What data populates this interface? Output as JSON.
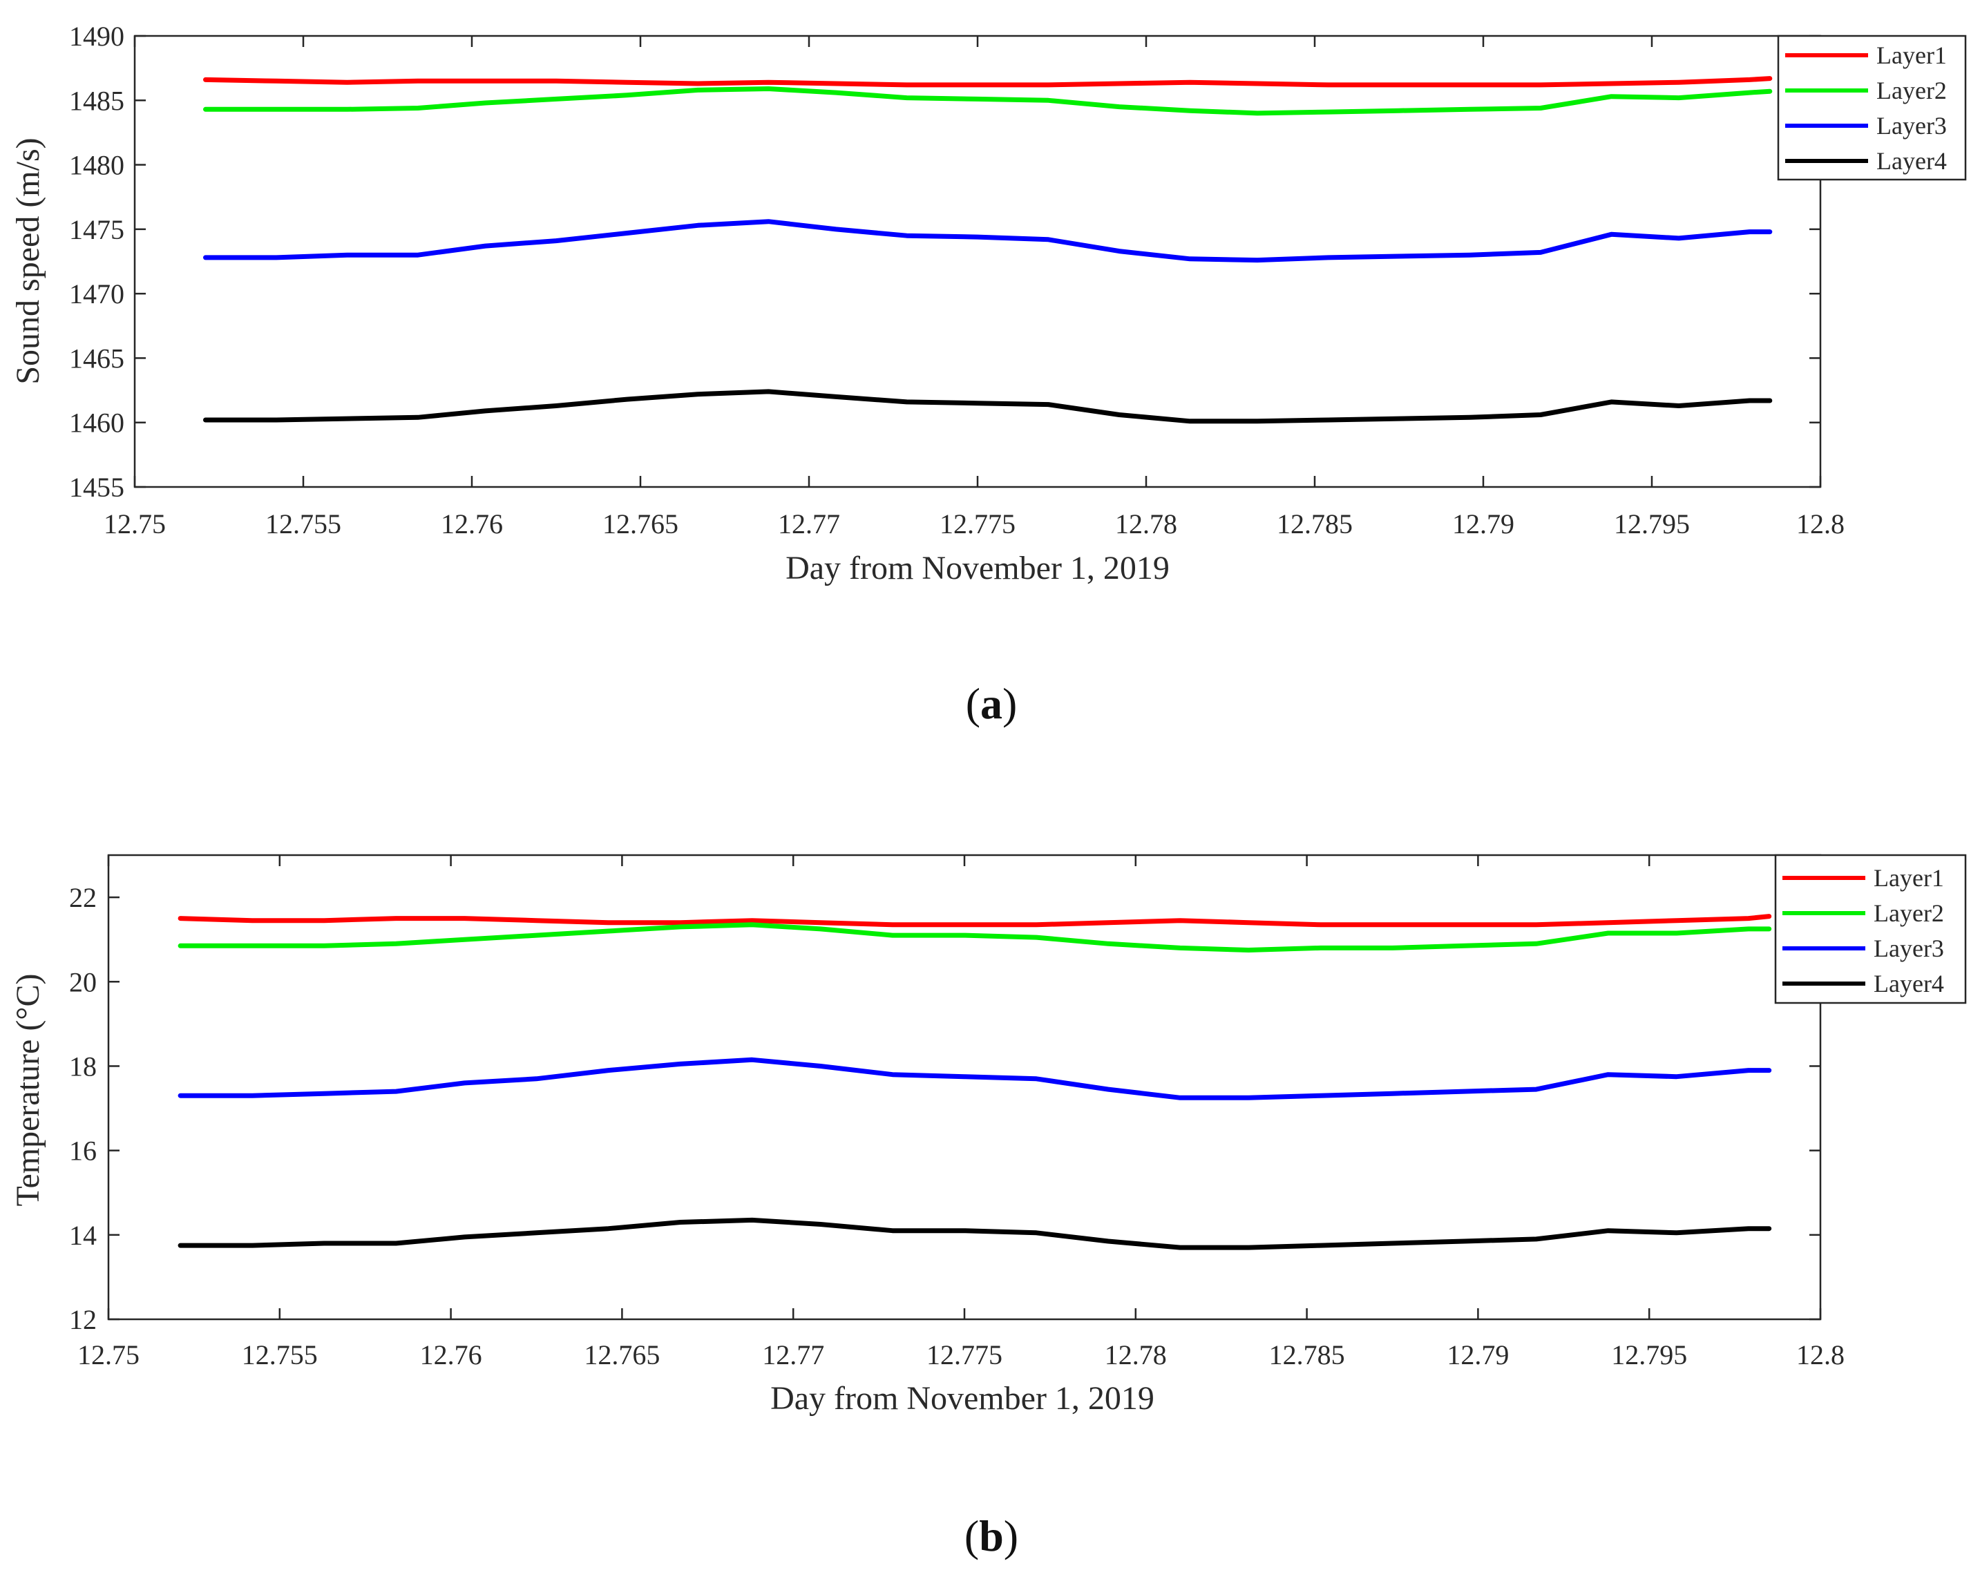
{
  "chart_data": [
    {
      "type": "line",
      "panel": "a",
      "caption_open": "(",
      "caption_letter": "a",
      "caption_close": ")",
      "xlabel": "Day from November 1, 2019",
      "ylabel": "Sound speed (m/s)",
      "xlim": [
        12.75,
        12.8
      ],
      "ylim": [
        1455,
        1490
      ],
      "xticks": [
        12.75,
        12.755,
        12.76,
        12.765,
        12.77,
        12.775,
        12.78,
        12.785,
        12.79,
        12.795,
        12.8
      ],
      "xtick_labels": [
        "12.75",
        "12.755",
        "12.76",
        "12.765",
        "12.77",
        "12.775",
        "12.78",
        "12.785",
        "12.79",
        "12.795",
        "12.8"
      ],
      "yticks": [
        1455,
        1460,
        1465,
        1470,
        1475,
        1480,
        1485,
        1490
      ],
      "ytick_labels": [
        "1455",
        "1460",
        "1465",
        "1470",
        "1475",
        "1480",
        "1485",
        "1490"
      ],
      "legend_position": "top-right",
      "series": [
        {
          "name": "Layer1",
          "color": "#ff0000",
          "x": [
            12.7521,
            12.7542,
            12.7563,
            12.7584,
            12.7604,
            12.7625,
            12.7646,
            12.7667,
            12.7688,
            12.7708,
            12.7729,
            12.775,
            12.7771,
            12.7792,
            12.7813,
            12.7833,
            12.7854,
            12.7875,
            12.7896,
            12.7917,
            12.7938,
            12.7958,
            12.7979,
            12.7985
          ],
          "y": [
            1486.6,
            1486.5,
            1486.4,
            1486.5,
            1486.5,
            1486.5,
            1486.4,
            1486.3,
            1486.4,
            1486.3,
            1486.2,
            1486.2,
            1486.2,
            1486.3,
            1486.4,
            1486.3,
            1486.2,
            1486.2,
            1486.2,
            1486.2,
            1486.3,
            1486.4,
            1486.6,
            1486.7
          ]
        },
        {
          "name": "Layer2",
          "color": "#00ee00",
          "x": [
            12.7521,
            12.7542,
            12.7563,
            12.7584,
            12.7604,
            12.7625,
            12.7646,
            12.7667,
            12.7688,
            12.7708,
            12.7729,
            12.775,
            12.7771,
            12.7792,
            12.7813,
            12.7833,
            12.7854,
            12.7875,
            12.7896,
            12.7917,
            12.7938,
            12.7958,
            12.7979,
            12.7985
          ],
          "y": [
            1484.3,
            1484.3,
            1484.3,
            1484.4,
            1484.8,
            1485.1,
            1485.4,
            1485.8,
            1485.9,
            1485.6,
            1485.2,
            1485.1,
            1485.0,
            1484.5,
            1484.2,
            1484.0,
            1484.1,
            1484.2,
            1484.3,
            1484.4,
            1485.3,
            1485.2,
            1485.6,
            1485.7
          ]
        },
        {
          "name": "Layer3",
          "color": "#0000ff",
          "x": [
            12.7521,
            12.7542,
            12.7563,
            12.7584,
            12.7604,
            12.7625,
            12.7646,
            12.7667,
            12.7688,
            12.7708,
            12.7729,
            12.775,
            12.7771,
            12.7792,
            12.7813,
            12.7833,
            12.7854,
            12.7875,
            12.7896,
            12.7917,
            12.7938,
            12.7958,
            12.7979,
            12.7985
          ],
          "y": [
            1472.8,
            1472.8,
            1473.0,
            1473.0,
            1473.7,
            1474.1,
            1474.7,
            1475.3,
            1475.6,
            1475.0,
            1474.5,
            1474.4,
            1474.2,
            1473.3,
            1472.7,
            1472.6,
            1472.8,
            1472.9,
            1473.0,
            1473.2,
            1474.6,
            1474.3,
            1474.8,
            1474.8
          ]
        },
        {
          "name": "Layer4",
          "color": "#000000",
          "x": [
            12.7521,
            12.7542,
            12.7563,
            12.7584,
            12.7604,
            12.7625,
            12.7646,
            12.7667,
            12.7688,
            12.7708,
            12.7729,
            12.775,
            12.7771,
            12.7792,
            12.7813,
            12.7833,
            12.7854,
            12.7875,
            12.7896,
            12.7917,
            12.7938,
            12.7958,
            12.7979,
            12.7985
          ],
          "y": [
            1460.2,
            1460.2,
            1460.3,
            1460.4,
            1460.9,
            1461.3,
            1461.8,
            1462.2,
            1462.4,
            1462.0,
            1461.6,
            1461.5,
            1461.4,
            1460.6,
            1460.1,
            1460.1,
            1460.2,
            1460.3,
            1460.4,
            1460.6,
            1461.6,
            1461.3,
            1461.7,
            1461.7
          ]
        }
      ]
    },
    {
      "type": "line",
      "panel": "b",
      "caption_open": "(",
      "caption_letter": "b",
      "caption_close": ")",
      "xlabel": "Day from November 1, 2019",
      "ylabel": "Temperature (°C)",
      "xlim": [
        12.75,
        12.8
      ],
      "ylim": [
        12,
        23
      ],
      "xticks": [
        12.75,
        12.755,
        12.76,
        12.765,
        12.77,
        12.775,
        12.78,
        12.785,
        12.79,
        12.795,
        12.8
      ],
      "xtick_labels": [
        "12.75",
        "12.755",
        "12.76",
        "12.765",
        "12.77",
        "12.775",
        "12.78",
        "12.785",
        "12.79",
        "12.795",
        "12.8"
      ],
      "yticks": [
        12,
        14,
        16,
        18,
        20,
        22
      ],
      "ytick_labels": [
        "12",
        "14",
        "16",
        "18",
        "20",
        "22"
      ],
      "legend_position": "top-right",
      "series": [
        {
          "name": "Layer1",
          "color": "#ff0000",
          "x": [
            12.7521,
            12.7542,
            12.7563,
            12.7584,
            12.7604,
            12.7625,
            12.7646,
            12.7667,
            12.7688,
            12.7708,
            12.7729,
            12.775,
            12.7771,
            12.7792,
            12.7813,
            12.7833,
            12.7854,
            12.7875,
            12.7896,
            12.7917,
            12.7938,
            12.7958,
            12.7979,
            12.7985
          ],
          "y": [
            21.5,
            21.45,
            21.45,
            21.5,
            21.5,
            21.45,
            21.4,
            21.4,
            21.45,
            21.4,
            21.35,
            21.35,
            21.35,
            21.4,
            21.45,
            21.4,
            21.35,
            21.35,
            21.35,
            21.35,
            21.4,
            21.45,
            21.5,
            21.55
          ]
        },
        {
          "name": "Layer2",
          "color": "#00ee00",
          "x": [
            12.7521,
            12.7542,
            12.7563,
            12.7584,
            12.7604,
            12.7625,
            12.7646,
            12.7667,
            12.7688,
            12.7708,
            12.7729,
            12.775,
            12.7771,
            12.7792,
            12.7813,
            12.7833,
            12.7854,
            12.7875,
            12.7896,
            12.7917,
            12.7938,
            12.7958,
            12.7979,
            12.7985
          ],
          "y": [
            20.85,
            20.85,
            20.85,
            20.9,
            21.0,
            21.1,
            21.2,
            21.3,
            21.35,
            21.25,
            21.1,
            21.1,
            21.05,
            20.9,
            20.8,
            20.75,
            20.8,
            20.8,
            20.85,
            20.9,
            21.15,
            21.15,
            21.25,
            21.25
          ]
        },
        {
          "name": "Layer3",
          "color": "#0000ff",
          "x": [
            12.7521,
            12.7542,
            12.7563,
            12.7584,
            12.7604,
            12.7625,
            12.7646,
            12.7667,
            12.7688,
            12.7708,
            12.7729,
            12.775,
            12.7771,
            12.7792,
            12.7813,
            12.7833,
            12.7854,
            12.7875,
            12.7896,
            12.7917,
            12.7938,
            12.7958,
            12.7979,
            12.7985
          ],
          "y": [
            17.3,
            17.3,
            17.35,
            17.4,
            17.6,
            17.7,
            17.9,
            18.05,
            18.15,
            18.0,
            17.8,
            17.75,
            17.7,
            17.45,
            17.25,
            17.25,
            17.3,
            17.35,
            17.4,
            17.45,
            17.8,
            17.75,
            17.9,
            17.9
          ]
        },
        {
          "name": "Layer4",
          "color": "#000000",
          "x": [
            12.7521,
            12.7542,
            12.7563,
            12.7584,
            12.7604,
            12.7625,
            12.7646,
            12.7667,
            12.7688,
            12.7708,
            12.7729,
            12.775,
            12.7771,
            12.7792,
            12.7813,
            12.7833,
            12.7854,
            12.7875,
            12.7896,
            12.7917,
            12.7938,
            12.7958,
            12.7979,
            12.7985
          ],
          "y": [
            13.75,
            13.75,
            13.8,
            13.8,
            13.95,
            14.05,
            14.15,
            14.3,
            14.35,
            14.25,
            14.1,
            14.1,
            14.05,
            13.85,
            13.7,
            13.7,
            13.75,
            13.8,
            13.85,
            13.9,
            14.1,
            14.05,
            14.15,
            14.15
          ]
        }
      ]
    }
  ]
}
